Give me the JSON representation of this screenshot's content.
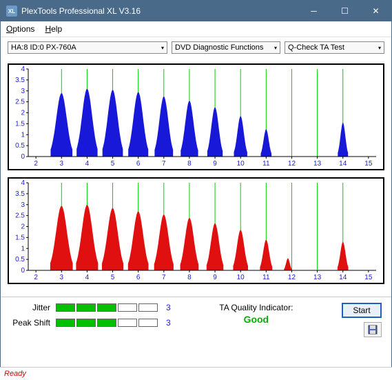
{
  "window": {
    "title": "PlexTools Professional XL V3.16",
    "icon_text": "XL"
  },
  "menu": {
    "options": "Options",
    "help": "Help"
  },
  "dropdowns": {
    "device": "HA:8 ID:0   PX-760A",
    "function": "DVD Diagnostic Functions",
    "test": "Q-Check TA Test"
  },
  "chart_top": {
    "type": "area",
    "series_color": "#1818d8",
    "gridline_color": "#00d000",
    "border_color": "#000000",
    "background_color": "#ffffff",
    "y_ticks": [
      0,
      0.5,
      1,
      1.5,
      2,
      2.5,
      3,
      3.5,
      4
    ],
    "x_ticks": [
      2,
      3,
      4,
      5,
      6,
      7,
      8,
      9,
      10,
      11,
      12,
      13,
      14,
      15
    ],
    "ylim": [
      0,
      4
    ],
    "xlim": [
      1.7,
      15.3
    ],
    "tick_fontsize": 10,
    "tick_color": "#2020d0",
    "peaks": [
      {
        "x": 3.0,
        "h": 2.9,
        "w": 0.85
      },
      {
        "x": 4.0,
        "h": 3.1,
        "w": 0.82
      },
      {
        "x": 5.0,
        "h": 3.05,
        "w": 0.8
      },
      {
        "x": 6.0,
        "h": 2.95,
        "w": 0.78
      },
      {
        "x": 7.0,
        "h": 2.75,
        "w": 0.72
      },
      {
        "x": 8.0,
        "h": 2.55,
        "w": 0.68
      },
      {
        "x": 9.0,
        "h": 2.25,
        "w": 0.6
      },
      {
        "x": 10.0,
        "h": 1.85,
        "w": 0.52
      },
      {
        "x": 11.0,
        "h": 1.25,
        "w": 0.42
      },
      {
        "x": 14.0,
        "h": 1.55,
        "w": 0.4
      }
    ]
  },
  "chart_bottom": {
    "type": "area",
    "series_color": "#e01010",
    "gridline_color": "#00d000",
    "border_color": "#000000",
    "background_color": "#ffffff",
    "y_ticks": [
      0,
      0.5,
      1,
      1.5,
      2,
      2.5,
      3,
      3.5,
      4
    ],
    "x_ticks": [
      2,
      3,
      4,
      5,
      6,
      7,
      8,
      9,
      10,
      11,
      12,
      13,
      14,
      15
    ],
    "ylim": [
      0,
      4
    ],
    "xlim": [
      1.7,
      15.3
    ],
    "tick_fontsize": 10,
    "tick_color": "#2020d0",
    "peaks": [
      {
        "x": 3.0,
        "h": 2.95,
        "w": 0.88
      },
      {
        "x": 4.0,
        "h": 3.0,
        "w": 0.86
      },
      {
        "x": 5.0,
        "h": 2.85,
        "w": 0.84
      },
      {
        "x": 6.0,
        "h": 2.7,
        "w": 0.8
      },
      {
        "x": 7.0,
        "h": 2.55,
        "w": 0.76
      },
      {
        "x": 8.0,
        "h": 2.4,
        "w": 0.72
      },
      {
        "x": 9.0,
        "h": 2.15,
        "w": 0.66
      },
      {
        "x": 10.0,
        "h": 1.85,
        "w": 0.58
      },
      {
        "x": 11.0,
        "h": 1.4,
        "w": 0.48
      },
      {
        "x": 11.85,
        "h": 0.55,
        "w": 0.3
      },
      {
        "x": 14.0,
        "h": 1.3,
        "w": 0.42
      }
    ]
  },
  "metrics": {
    "jitter": {
      "label": "Jitter",
      "value": "3",
      "filled": 3,
      "total": 5,
      "fill_color": "#00c000"
    },
    "peakshift": {
      "label": "Peak Shift",
      "value": "3",
      "filled": 3,
      "total": 5,
      "fill_color": "#00c000"
    }
  },
  "ta": {
    "label": "TA Quality Indicator:",
    "value": "Good",
    "value_color": "#00b000"
  },
  "buttons": {
    "start": "Start"
  },
  "status": {
    "text": "Ready"
  }
}
